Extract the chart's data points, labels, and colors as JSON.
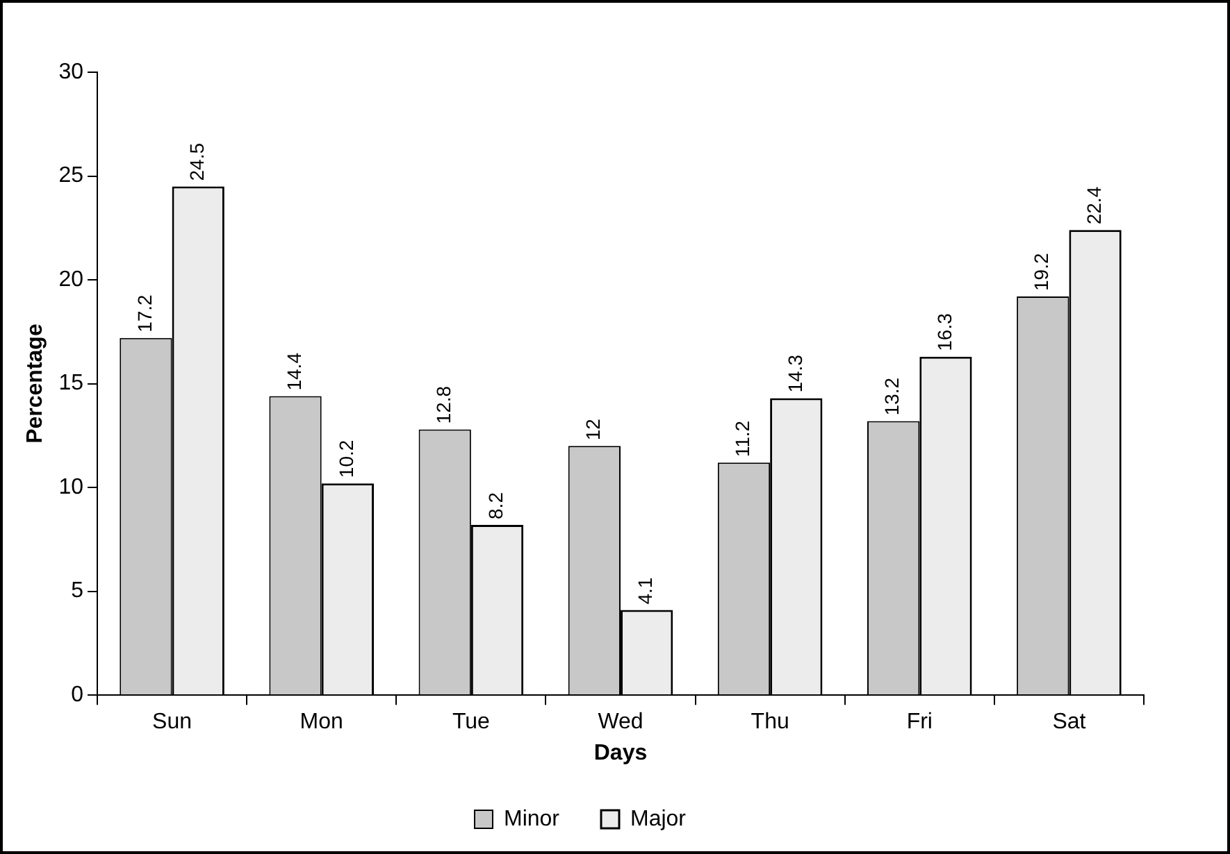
{
  "chart_data": {
    "type": "bar",
    "xlabel": "Days",
    "ylabel": "Percentage",
    "categories": [
      "Sun",
      "Mon",
      "Tue",
      "Wed",
      "Thu",
      "Fri",
      "Sat"
    ],
    "series": [
      {
        "name": "Minor",
        "color": "#c8c8c8",
        "values": [
          17.2,
          14.4,
          12.8,
          12,
          11.2,
          13.2,
          19.2
        ]
      },
      {
        "name": "Major",
        "color": "#ececec",
        "values": [
          24.5,
          10.2,
          8.2,
          4.1,
          14.3,
          16.3,
          22.4
        ]
      }
    ],
    "ylim": [
      0,
      30
    ],
    "yticks": [
      0,
      5,
      10,
      15,
      20,
      25,
      30
    ],
    "grid": false,
    "legend": "bottom",
    "data_labels": true
  }
}
